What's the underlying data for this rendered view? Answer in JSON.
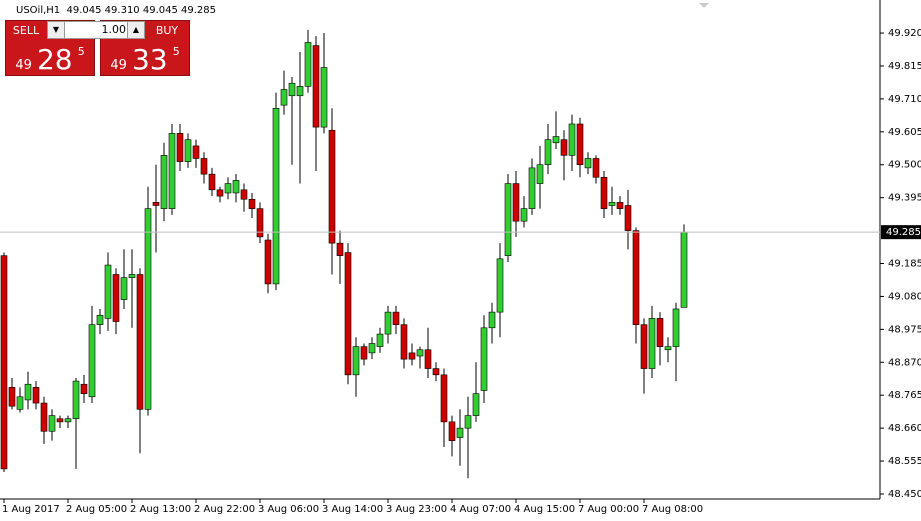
{
  "chart_data": {
    "type": "candlestick",
    "title": "USOil,H1  49.045 49.310 49.045 49.285",
    "x": [
      "1 Aug 2017",
      null,
      null,
      null,
      null,
      null,
      null,
      null,
      "2 Aug 05:00",
      null,
      null,
      null,
      null,
      null,
      null,
      null,
      "2 Aug 13:00",
      null,
      null,
      null,
      null,
      null,
      null,
      null,
      "2 Aug 22:00",
      null,
      null,
      null,
      null,
      null,
      null,
      null,
      "3 Aug 06:00",
      null,
      null,
      null,
      null,
      null,
      null,
      null,
      "3 Aug 14:00",
      null,
      null,
      null,
      null,
      null,
      null,
      null,
      "3 Aug 23:00",
      null,
      null,
      null,
      null,
      null,
      null,
      null,
      "4 Aug 07:00",
      null,
      null,
      null,
      null,
      null,
      null,
      null,
      "4 Aug 15:00",
      null,
      null,
      null,
      null,
      null,
      null,
      null,
      "7 Aug 00:00",
      null,
      null,
      null,
      null,
      null,
      null,
      null,
      "7 Aug 08:00",
      null,
      null,
      null,
      null,
      null
    ],
    "open": [
      49.21,
      48.79,
      48.72,
      48.75,
      48.79,
      48.74,
      48.65,
      48.69,
      48.68,
      48.69,
      48.8,
      48.76,
      48.99,
      49.01,
      49.15,
      49.07,
      49.14,
      49.15,
      48.72,
      49.38,
      49.36,
      49.36,
      49.6,
      49.51,
      49.56,
      49.52,
      49.47,
      49.42,
      49.41,
      49.41,
      49.42,
      49.39,
      49.36,
      49.26,
      49.12,
      49.69,
      49.72,
      49.72,
      49.75,
      49.88,
      49.62,
      49.61,
      49.25,
      49.22,
      48.83,
      48.92,
      48.9,
      48.92,
      48.96,
      49.03,
      48.99,
      48.9,
      48.89,
      48.91,
      48.85,
      48.83,
      48.68,
      48.63,
      48.66,
      48.7,
      48.78,
      48.98,
      49.03,
      49.21,
      49.44,
      49.32,
      49.36,
      49.44,
      49.5,
      49.57,
      49.58,
      49.53,
      49.63,
      49.49,
      49.52,
      49.46,
      49.37,
      49.38,
      49.37,
      49.29,
      48.99,
      48.85,
      49.01,
      48.91,
      48.92,
      49.045
    ],
    "high": [
      49.22,
      48.82,
      48.79,
      48.84,
      48.81,
      48.76,
      48.72,
      48.7,
      48.7,
      48.82,
      48.83,
      49.05,
      49.04,
      49.22,
      49.17,
      49.23,
      49.23,
      49.17,
      49.43,
      49.5,
      49.57,
      49.63,
      49.63,
      49.6,
      49.58,
      49.54,
      49.49,
      49.43,
      49.46,
      49.47,
      49.44,
      49.41,
      49.38,
      49.28,
      49.73,
      49.8,
      49.78,
      49.86,
      49.93,
      49.91,
      49.92,
      49.68,
      49.29,
      49.25,
      48.95,
      48.93,
      48.95,
      48.98,
      49.05,
      49.05,
      49.01,
      48.93,
      48.92,
      48.98,
      48.87,
      48.85,
      48.7,
      48.72,
      48.76,
      48.87,
      49.02,
      49.06,
      49.25,
      49.47,
      49.48,
      49.4,
      49.52,
      49.56,
      49.63,
      49.67,
      49.61,
      49.66,
      49.65,
      49.54,
      49.53,
      49.48,
      49.43,
      49.4,
      49.42,
      49.3,
      49.01,
      49.05,
      49.03,
      48.95,
      49.06,
      49.31
    ],
    "low": [
      48.52,
      48.72,
      48.71,
      48.72,
      48.72,
      48.61,
      48.62,
      48.66,
      48.66,
      48.53,
      48.74,
      48.74,
      48.96,
      48.97,
      48.96,
      49.04,
      48.98,
      48.58,
      48.7,
      49.22,
      49.32,
      49.34,
      49.48,
      49.49,
      49.49,
      49.44,
      49.4,
      49.38,
      49.39,
      49.38,
      49.35,
      49.33,
      49.25,
      49.09,
      49.1,
      49.66,
      49.5,
      49.44,
      49.73,
      49.48,
      49.6,
      49.15,
      49.12,
      48.8,
      48.76,
      48.86,
      48.88,
      48.9,
      48.93,
      48.96,
      48.85,
      48.86,
      48.85,
      48.82,
      48.81,
      48.6,
      48.57,
      48.54,
      48.5,
      48.68,
      48.74,
      48.93,
      48.95,
      49.19,
      49.27,
      49.3,
      49.34,
      49.36,
      49.47,
      49.55,
      49.45,
      49.48,
      49.46,
      49.47,
      49.44,
      49.33,
      49.34,
      49.34,
      49.23,
      48.93,
      48.77,
      48.82,
      48.86,
      48.87,
      48.81,
      49.045
    ],
    "close": [
      48.53,
      48.73,
      48.76,
      48.8,
      48.74,
      48.65,
      48.7,
      48.68,
      48.69,
      48.81,
      48.77,
      48.99,
      49.02,
      49.18,
      49.0,
      49.14,
      49.15,
      48.72,
      49.36,
      49.37,
      49.53,
      49.6,
      49.51,
      49.58,
      49.52,
      49.47,
      49.42,
      49.4,
      49.44,
      49.45,
      49.39,
      49.36,
      49.27,
      49.12,
      49.68,
      49.74,
      49.76,
      49.75,
      49.89,
      49.62,
      49.81,
      49.25,
      49.21,
      48.83,
      48.92,
      48.88,
      48.93,
      48.96,
      49.03,
      48.99,
      48.88,
      48.88,
      48.91,
      48.85,
      48.83,
      48.68,
      48.62,
      48.66,
      48.7,
      48.77,
      48.98,
      49.03,
      49.2,
      49.44,
      49.32,
      49.36,
      49.49,
      49.5,
      49.58,
      49.59,
      49.53,
      49.63,
      49.5,
      49.52,
      49.46,
      49.36,
      49.38,
      49.36,
      49.29,
      48.99,
      48.85,
      49.01,
      48.92,
      48.92,
      49.04,
      49.285
    ],
    "up_color": "#32cd32",
    "down_color": "#d00000",
    "wick_color": "#000000",
    "ylim": [
      48.434,
      50.019
    ],
    "yticks": [
      {
        "value": 49.92,
        "label": "49.920"
      },
      49.815,
      {
        "value": 49.71,
        "label": "49.710"
      },
      49.605,
      {
        "value": 49.5,
        "label": "49.500"
      },
      49.395,
      49.185,
      {
        "value": 49.08,
        "label": "49.080"
      },
      48.975,
      {
        "value": 48.87,
        "label": "48.870"
      },
      48.765,
      {
        "value": 48.66,
        "label": "48.660"
      },
      48.555,
      {
        "value": 48.45,
        "label": "48.450"
      }
    ],
    "current_price": {
      "value": 49.285,
      "label": "49.285"
    }
  },
  "trade_panel": {
    "sell_label": "SELL",
    "buy_label": "BUY",
    "lot": "1.00",
    "sell_price_prefix": "49",
    "sell_price_main": "28",
    "sell_price_pip": "5",
    "buy_price_prefix": "49",
    "buy_price_main": "33",
    "buy_price_pip": "5"
  }
}
